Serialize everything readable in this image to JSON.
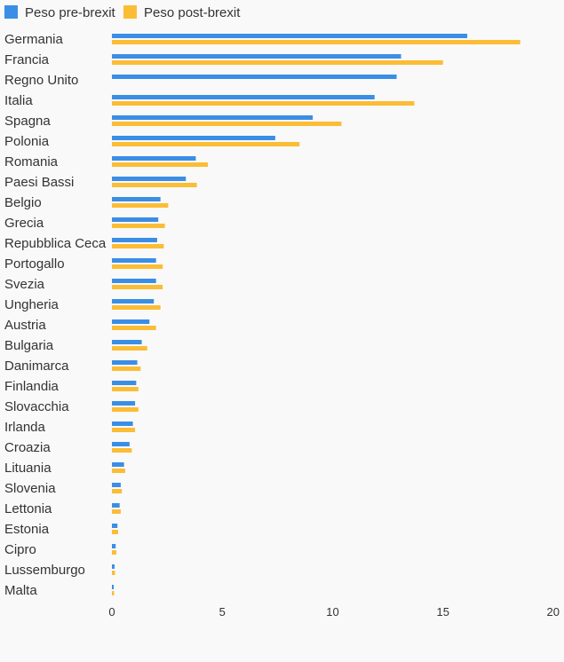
{
  "chart_data": {
    "type": "bar",
    "orientation": "horizontal",
    "categories": [
      "Germania",
      "Francia",
      "Regno Unito",
      "Italia",
      "Spagna",
      "Polonia",
      "Romania",
      "Paesi Bassi",
      "Belgio",
      "Grecia",
      "Repubblica Ceca",
      "Portogallo",
      "Svezia",
      "Ungheria",
      "Austria",
      "Bulgaria",
      "Danimarca",
      "Finlandia",
      "Slovacchia",
      "Irlanda",
      "Croazia",
      "Lituania",
      "Slovenia",
      "Lettonia",
      "Estonia",
      "Cipro",
      "Lussemburgo",
      "Malta"
    ],
    "series": [
      {
        "name": "Peso pre-brexit",
        "color": "#3b8ee5",
        "values": [
          16.1,
          13.1,
          12.9,
          11.9,
          9.1,
          7.4,
          3.8,
          3.35,
          2.2,
          2.1,
          2.05,
          2.0,
          2.0,
          1.9,
          1.7,
          1.35,
          1.15,
          1.1,
          1.05,
          0.95,
          0.8,
          0.55,
          0.4,
          0.35,
          0.25,
          0.17,
          0.12,
          0.08
        ]
      },
      {
        "name": "Peso post-brexit",
        "color": "#fbbd35",
        "values": [
          18.5,
          15.0,
          null,
          13.7,
          10.4,
          8.5,
          4.35,
          3.85,
          2.55,
          2.4,
          2.35,
          2.3,
          2.3,
          2.2,
          2.0,
          1.6,
          1.3,
          1.2,
          1.2,
          1.05,
          0.9,
          0.6,
          0.45,
          0.4,
          0.28,
          0.2,
          0.14,
          0.1
        ]
      }
    ],
    "xlim": [
      0,
      20
    ],
    "xticks": [
      0,
      5,
      10,
      15,
      20
    ],
    "grid": false,
    "legend": "top-left",
    "title": "",
    "xlabel": "",
    "ylabel": ""
  }
}
